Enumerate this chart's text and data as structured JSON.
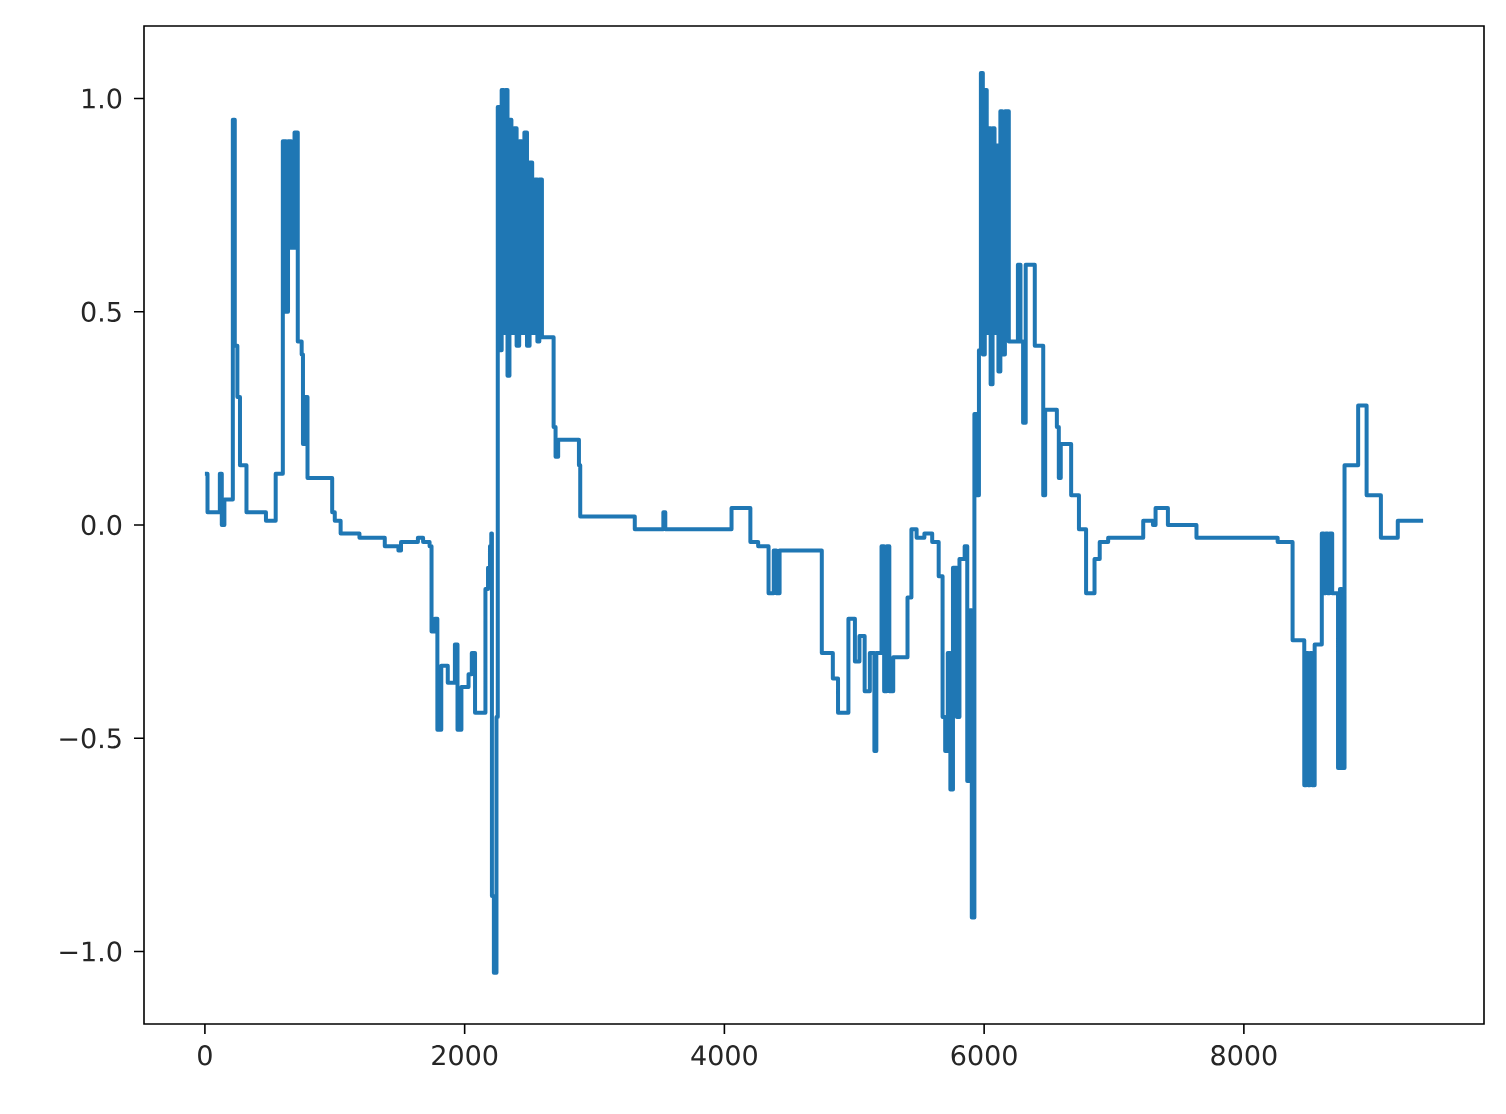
{
  "chart_data": {
    "type": "step",
    "x": [
      0,
      20,
      115,
      130,
      150,
      215,
      230,
      250,
      270,
      320,
      470,
      545,
      600,
      625,
      640,
      665,
      690,
      715,
      745,
      755,
      765,
      790,
      980,
      1000,
      1045,
      1190,
      1385,
      1490,
      1510,
      1640,
      1680,
      1730,
      1745,
      1770,
      1790,
      1820,
      1870,
      1925,
      1945,
      1975,
      2030,
      2055,
      2080,
      2160,
      2180,
      2195,
      2205,
      2210,
      2225,
      2245,
      2255,
      2270,
      2285,
      2300,
      2315,
      2330,
      2345,
      2360,
      2380,
      2400,
      2420,
      2440,
      2460,
      2480,
      2500,
      2520,
      2540,
      2560,
      2575,
      2595,
      2685,
      2700,
      2720,
      2880,
      2890,
      3310,
      3530,
      3545,
      4055,
      4200,
      4260,
      4340,
      4380,
      4400,
      4425,
      4750,
      4835,
      4875,
      4955,
      5005,
      5040,
      5080,
      5120,
      5155,
      5170,
      5210,
      5230,
      5250,
      5270,
      5300,
      5410,
      5440,
      5480,
      5540,
      5600,
      5650,
      5680,
      5700,
      5720,
      5740,
      5760,
      5790,
      5810,
      5850,
      5870,
      5890,
      5905,
      5925,
      5945,
      5960,
      5975,
      5990,
      6005,
      6020,
      6035,
      6050,
      6065,
      6080,
      6095,
      6110,
      6125,
      6140,
      6160,
      6190,
      6260,
      6280,
      6300,
      6320,
      6390,
      6455,
      6470,
      6560,
      6575,
      6590,
      6670,
      6730,
      6785,
      6850,
      6890,
      6955,
      7225,
      7300,
      7320,
      7415,
      7635,
      8260,
      8375,
      8465,
      8480,
      8495,
      8510,
      8525,
      8545,
      8600,
      8615,
      8630,
      8645,
      8660,
      8680,
      8725,
      8740,
      8755,
      8775,
      8880,
      8945,
      9055,
      9185,
      9380
    ],
    "values": [
      0.12,
      0.03,
      0.12,
      0.0,
      0.06,
      0.95,
      0.42,
      0.3,
      0.14,
      0.03,
      0.01,
      0.12,
      0.9,
      0.5,
      0.9,
      0.65,
      0.92,
      0.43,
      0.4,
      0.19,
      0.3,
      0.11,
      0.03,
      0.01,
      -0.02,
      -0.03,
      -0.05,
      -0.06,
      -0.04,
      -0.03,
      -0.04,
      -0.05,
      -0.25,
      -0.22,
      -0.48,
      -0.33,
      -0.37,
      -0.28,
      -0.48,
      -0.38,
      -0.35,
      -0.3,
      -0.44,
      -0.15,
      -0.1,
      -0.05,
      -0.02,
      -0.87,
      -1.05,
      -0.45,
      0.98,
      0.41,
      1.02,
      0.45,
      1.02,
      0.35,
      0.95,
      0.45,
      0.93,
      0.42,
      0.9,
      0.45,
      0.92,
      0.42,
      0.85,
      0.45,
      0.81,
      0.43,
      0.81,
      0.44,
      0.23,
      0.16,
      0.2,
      0.14,
      0.02,
      -0.01,
      0.03,
      -0.01,
      0.04,
      -0.04,
      -0.05,
      -0.16,
      -0.06,
      -0.16,
      -0.06,
      -0.3,
      -0.36,
      -0.44,
      -0.22,
      -0.32,
      -0.26,
      -0.39,
      -0.3,
      -0.53,
      -0.3,
      -0.05,
      -0.39,
      -0.05,
      -0.39,
      -0.31,
      -0.17,
      -0.01,
      -0.03,
      -0.02,
      -0.04,
      -0.12,
      -0.45,
      -0.53,
      -0.3,
      -0.62,
      -0.1,
      -0.45,
      -0.08,
      -0.05,
      -0.6,
      -0.2,
      -0.92,
      0.26,
      0.07,
      0.41,
      1.06,
      0.4,
      1.02,
      0.45,
      0.93,
      0.33,
      0.93,
      0.45,
      0.89,
      0.36,
      0.97,
      0.4,
      0.97,
      0.43,
      0.61,
      0.43,
      0.24,
      0.61,
      0.42,
      0.07,
      0.27,
      0.23,
      0.11,
      0.19,
      0.07,
      -0.01,
      -0.16,
      -0.08,
      -0.04,
      -0.03,
      0.01,
      0.0,
      0.04,
      0.0,
      -0.03,
      -0.04,
      -0.27,
      -0.61,
      -0.3,
      -0.61,
      -0.3,
      -0.61,
      -0.28,
      -0.02,
      -0.16,
      -0.02,
      -0.16,
      -0.02,
      -0.16,
      -0.57,
      -0.15,
      -0.57,
      0.14,
      0.28,
      0.07,
      -0.03,
      0.01,
      0.01
    ],
    "color": "#1f77b4",
    "xlim": [
      -469,
      9849
    ],
    "ylim": [
      -1.17,
      1.17
    ],
    "xticks": [
      0,
      2000,
      4000,
      6000,
      8000
    ],
    "yticks": [
      {
        "value": -1.0,
        "label": "−1.0"
      },
      {
        "value": -0.5,
        "label": "−0.5"
      },
      {
        "value": 0.0,
        "label": "0.0"
      },
      {
        "value": 0.5,
        "label": "0.5"
      },
      {
        "value": 1.0,
        "label": "1.0"
      }
    ],
    "grid": false,
    "line_style": "solid"
  }
}
